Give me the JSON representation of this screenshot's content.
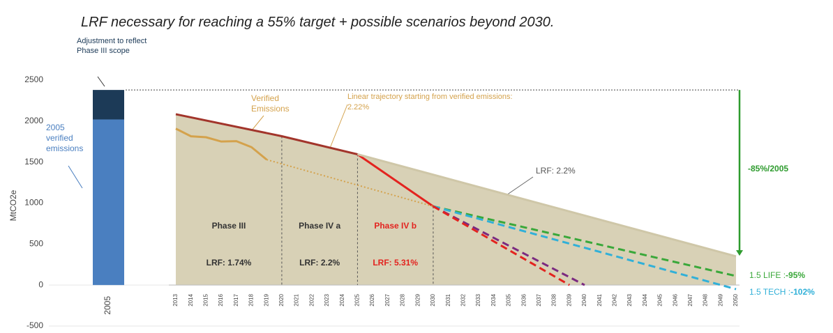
{
  "chart_data": {
    "type": "line",
    "title": "LRF necessary for reaching a 55% target + possible scenarios beyond 2030.",
    "y_label": "MtCO2e",
    "ylim": [
      -500,
      2500
    ],
    "yticks": [
      -500,
      0,
      500,
      1000,
      1500,
      2000,
      2500
    ],
    "xlim": [
      2013,
      2050
    ],
    "xticks": [
      2013,
      2014,
      2015,
      2016,
      2017,
      2018,
      2019,
      2020,
      2021,
      2022,
      2023,
      2024,
      2025,
      2026,
      2027,
      2028,
      2029,
      2030,
      2031,
      2032,
      2033,
      2034,
      2035,
      2036,
      2037,
      2038,
      2039,
      2040,
      2041,
      2042,
      2043,
      2044,
      2045,
      2046,
      2047,
      2048,
      2049,
      2050
    ],
    "bar": {
      "category": "2005",
      "segments": [
        {
          "name": "2005 verified emissions",
          "value": 2020,
          "color": "#4a7fc0"
        },
        {
          "name": "Adjustment to reflect Phase III scope",
          "value": 360,
          "color": "#1c3a57"
        }
      ]
    },
    "area_color": "#d8d1b6",
    "series": [
      {
        "color": "#a2352b",
        "style": "solid",
        "x": [
          2013,
          2020,
          2025
        ],
        "values": [
          2084,
          1816,
          1595
        ]
      },
      {
        "color": "#e3231f",
        "style": "solid",
        "x": [
          2025,
          2030
        ],
        "values": [
          1595,
          960
        ]
      },
      {
        "name": "LRF: 2.2%",
        "color": "#cfc7a8",
        "style": "solid",
        "x": [
          2025,
          2050
        ],
        "values": [
          1595,
          350
        ]
      },
      {
        "name": "Verified Emissions",
        "color": "#d4a24c",
        "style": "solid",
        "x": [
          2013,
          2014,
          2015,
          2016,
          2017,
          2018,
          2019
        ],
        "values": [
          1908,
          1815,
          1803,
          1751,
          1755,
          1682,
          1530
        ]
      },
      {
        "name": "Linear trajectory starting from verified emissions: 2.22%",
        "color": "#d4a24c",
        "style": "dotted",
        "x": [
          2019,
          2030
        ],
        "values": [
          1530,
          960
        ]
      },
      {
        "name": "1.5 LIFE :",
        "value_label": "-95%",
        "color": "#3aa83a",
        "style": "dashed",
        "x": [
          2030,
          2050
        ],
        "values": [
          960,
          110
        ]
      },
      {
        "name": "1.5 TECH :",
        "value_label": "-102%",
        "color": "#31b0d8",
        "style": "dashed",
        "x": [
          2030,
          2050
        ],
        "values": [
          960,
          -50
        ]
      },
      {
        "color": "#7b2a80",
        "style": "dashed",
        "x": [
          2030,
          2040
        ],
        "values": [
          960,
          0
        ]
      },
      {
        "color": "#e3231f",
        "style": "dashed",
        "x": [
          2030,
          2039
        ],
        "values": [
          960,
          0
        ]
      }
    ],
    "phases": [
      {
        "label": "Phase III",
        "lrf": "LRF: 1.74%",
        "from": 2013,
        "to": 2020,
        "color": "#333333"
      },
      {
        "label": "Phase IV a",
        "lrf": "LRF: 2.2%",
        "from": 2020,
        "to": 2025,
        "color": "#333333"
      },
      {
        "label": "Phase IV b",
        "lrf": "LRF: 5.31%",
        "from": 2025,
        "to": 2030,
        "color": "#e3231f"
      }
    ],
    "reduction_arrow": {
      "label": "-85%/2005",
      "from": 2380,
      "to": 357,
      "x": 2050,
      "color": "#2e9b2e"
    }
  }
}
